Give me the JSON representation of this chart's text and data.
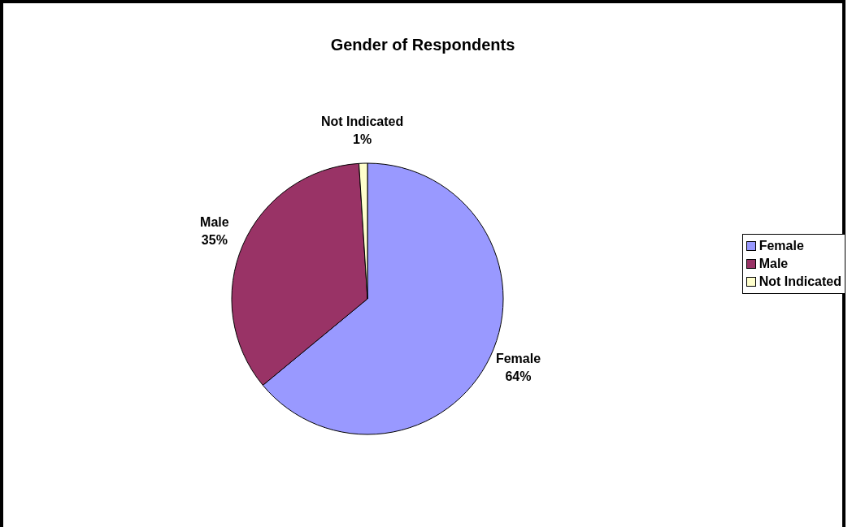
{
  "chart_data": {
    "type": "pie",
    "title": "Gender of Respondents",
    "categories": [
      "Female",
      "Male",
      "Not Indicated"
    ],
    "values": [
      64,
      35,
      1
    ],
    "value_labels": [
      "64%",
      "35%",
      "1%"
    ],
    "colors": [
      "#9999ff",
      "#993366",
      "#ffffcc"
    ],
    "legend": "right"
  }
}
